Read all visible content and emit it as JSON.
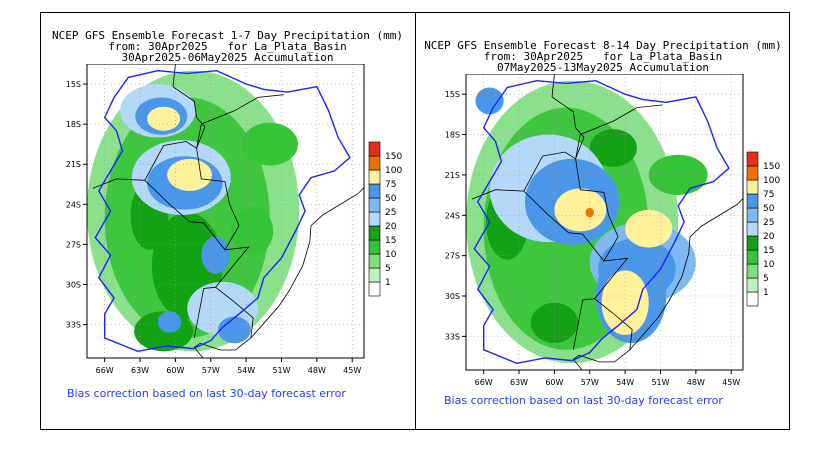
{
  "colors": {
    "bins": [
      "#ffffff",
      "#bff0bf",
      "#7edd7e",
      "#35c435",
      "#13a213",
      "#b3d8f8",
      "#7fb9f2",
      "#4a97ea",
      "#fff29a",
      "#ffb800",
      "#f07000",
      "#e52e1a"
    ],
    "basin": "#1a24ff",
    "bias": "#1f3fff"
  },
  "legend": [
    "1",
    "5",
    "10",
    "15",
    "20",
    "25",
    "50",
    "75",
    "100",
    "150"
  ],
  "panels": [
    {
      "id": "panel1",
      "title_line1": "NCEP GFS Ensemble Forecast 1-7 Day Precipitation (mm)",
      "title_line2": "from: 30Apr2025   for La_Plata_Basin",
      "title_line3": "30Apr2025-06May2025 Accumulation",
      "lat_labels": [
        "15S",
        "18S",
        "21S",
        "24S",
        "27S",
        "30S",
        "33S"
      ],
      "lon_labels": [
        "66W",
        "63W",
        "60W",
        "57W",
        "54W",
        "51W",
        "48W",
        "45W"
      ],
      "bias_note": "Bias correction based on last 30-day forecast error"
    },
    {
      "id": "panel2",
      "title_line1": "NCEP GFS Ensemble Forecast 8-14 Day Precipitation (mm)",
      "title_line2": "from: 30Apr2025   for La_Plata_Basin",
      "title_line3": "07May2025-13May2025 Accumulation",
      "lat_labels": [
        "15S",
        "18S",
        "21S",
        "24S",
        "27S",
        "30S",
        "33S"
      ],
      "lon_labels": [
        "66W",
        "63W",
        "60W",
        "57W",
        "54W",
        "51W",
        "48W",
        "45W"
      ],
      "bias_note": "Bias correction based on last 30-day forecast error"
    }
  ],
  "chart_data": [
    {
      "type": "heatmap",
      "title": "NCEP GFS Ensemble Forecast 1-7 Day Precipitation (mm)",
      "units": "mm",
      "x_range_deg": [
        -67.5,
        -44
      ],
      "y_range_deg": [
        -35.5,
        -13.5
      ],
      "precip_regions": [
        {
          "lon": -61.5,
          "lat": -17.0,
          "rx": 3.2,
          "ry": 2.0,
          "mm": 15
        },
        {
          "lon": -61.2,
          "lat": -17.4,
          "rx": 2.2,
          "ry": 1.4,
          "mm": 25
        },
        {
          "lon": -61.0,
          "lat": -17.6,
          "rx": 1.4,
          "ry": 0.9,
          "mm": 50
        },
        {
          "lon": -59.5,
          "lat": -22.0,
          "rx": 4.2,
          "ry": 2.8,
          "mm": 15
        },
        {
          "lon": -59.2,
          "lat": -22.4,
          "rx": 3.2,
          "ry": 2.0,
          "mm": 25
        },
        {
          "lon": -58.8,
          "lat": -21.8,
          "rx": 1.9,
          "ry": 1.2,
          "mm": 50
        },
        {
          "lon": -62.2,
          "lat": -24.8,
          "rx": 1.6,
          "ry": 2.6,
          "mm": 10
        },
        {
          "lon": -59.0,
          "lat": -28.6,
          "rx": 3.0,
          "ry": 4.0,
          "mm": 10
        },
        {
          "lon": -56.6,
          "lat": -27.8,
          "rx": 1.2,
          "ry": 1.4,
          "mm": 25
        },
        {
          "lon": -56.0,
          "lat": -31.8,
          "rx": 3.0,
          "ry": 2.0,
          "mm": 15
        },
        {
          "lon": -55.0,
          "lat": -33.4,
          "rx": 1.4,
          "ry": 1.0,
          "mm": 25
        },
        {
          "lon": -60.5,
          "lat": -32.8,
          "rx": 1.0,
          "ry": 0.8,
          "mm": 25
        },
        {
          "lon": -52.0,
          "lat": -19.5,
          "rx": 2.4,
          "ry": 1.6,
          "mm": 5
        },
        {
          "lon": -53.5,
          "lat": -26.0,
          "rx": 1.8,
          "ry": 1.8,
          "mm": 5
        },
        {
          "lon": -61.0,
          "lat": -33.5,
          "rx": 2.5,
          "ry": 1.5,
          "mm": 10
        }
      ]
    },
    {
      "type": "heatmap",
      "title": "NCEP GFS Ensemble Forecast 8-14 Day Precipitation (mm)",
      "units": "mm",
      "x_range_deg": [
        -67.5,
        -44
      ],
      "y_range_deg": [
        -35.5,
        -13.5
      ],
      "precip_regions": [
        {
          "lon": -60.5,
          "lat": -22.0,
          "rx": 5.0,
          "ry": 4.0,
          "mm": 15
        },
        {
          "lon": -58.5,
          "lat": -23.0,
          "rx": 4.0,
          "ry": 3.2,
          "mm": 25
        },
        {
          "lon": -57.8,
          "lat": -23.6,
          "rx": 2.2,
          "ry": 1.6,
          "mm": 50
        },
        {
          "lon": -57.0,
          "lat": -23.8,
          "rx": 0.35,
          "ry": 0.35,
          "mm": 100
        },
        {
          "lon": -52.5,
          "lat": -27.5,
          "rx": 4.5,
          "ry": 3.0,
          "mm": 20
        },
        {
          "lon": -53.0,
          "lat": -28.0,
          "rx": 3.3,
          "ry": 2.3,
          "mm": 25
        },
        {
          "lon": -53.5,
          "lat": -30.0,
          "rx": 3.0,
          "ry": 3.5,
          "mm": 25
        },
        {
          "lon": -54.0,
          "lat": -30.5,
          "rx": 2.0,
          "ry": 2.4,
          "mm": 50
        },
        {
          "lon": -52.0,
          "lat": -25.0,
          "rx": 2.0,
          "ry": 1.4,
          "mm": 50
        },
        {
          "lon": -65.5,
          "lat": -15.5,
          "rx": 1.2,
          "ry": 1.0,
          "mm": 25
        },
        {
          "lon": -64.0,
          "lat": -24.5,
          "rx": 1.8,
          "ry": 2.8,
          "mm": 10
        },
        {
          "lon": -60.0,
          "lat": -32.0,
          "rx": 2.0,
          "ry": 1.5,
          "mm": 10
        },
        {
          "lon": -49.5,
          "lat": -21.0,
          "rx": 2.5,
          "ry": 1.5,
          "mm": 5
        },
        {
          "lon": -55.0,
          "lat": -19.0,
          "rx": 2.0,
          "ry": 1.4,
          "mm": 10
        }
      ]
    }
  ]
}
